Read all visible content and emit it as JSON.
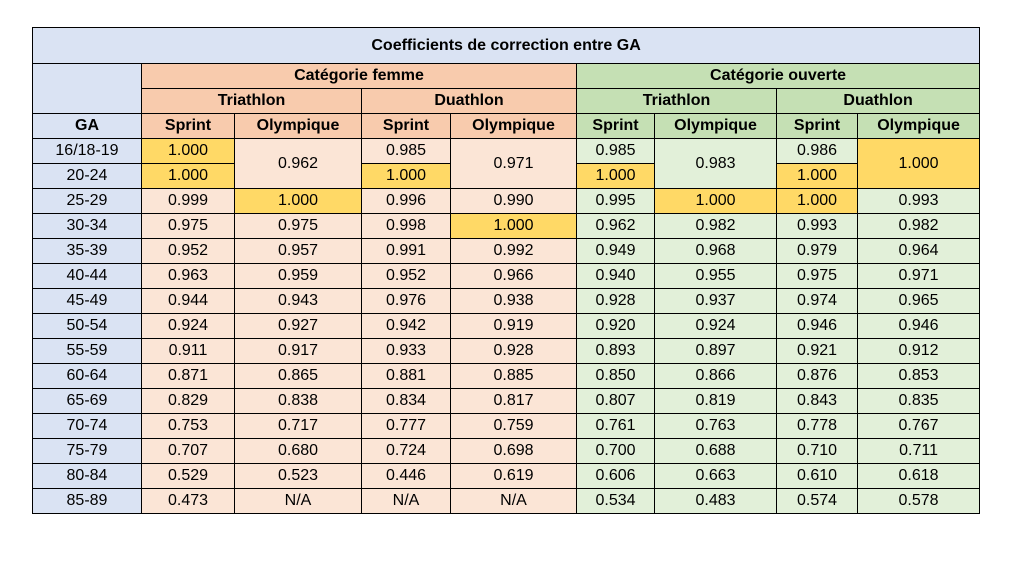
{
  "title": "Coefficients de correction entre GA",
  "header": {
    "category_femme": "Catégorie femme",
    "category_ouverte": "Catégorie ouverte",
    "triathlon": "Triathlon",
    "duathlon": "Duathlon",
    "ga": "GA",
    "sprint": "Sprint",
    "olympique": "Olympique"
  },
  "colors": {
    "header_blue": "#dae3f3",
    "femme_header": "#f8cbad",
    "femme_cell": "#fbe5d6",
    "ouverte_header": "#c5e0b4",
    "ouverte_cell": "#e2f0d9",
    "highlight": "#ffd966"
  },
  "rows": {
    "r1": {
      "ga": "16/18-19",
      "fts": "1.000",
      "fto": "0.962",
      "fds": "0.985",
      "fdo": "0.971",
      "ots": "0.985",
      "oto": "0.983",
      "ods": "0.986",
      "odo": "1.000"
    },
    "r2": {
      "ga": "20-24",
      "fts": "1.000",
      "fds": "1.000",
      "ots": "1.000",
      "ods": "1.000"
    },
    "r3": {
      "ga": "25-29",
      "fts": "0.999",
      "fto": "1.000",
      "fds": "0.996",
      "fdo": "0.990",
      "ots": "0.995",
      "oto": "1.000",
      "ods": "1.000",
      "odo": "0.993"
    },
    "r4": {
      "ga": "30-34",
      "fts": "0.975",
      "fto": "0.975",
      "fds": "0.998",
      "fdo": "1.000",
      "ots": "0.962",
      "oto": "0.982",
      "ods": "0.993",
      "odo": "0.982"
    },
    "r5": {
      "ga": "35-39",
      "fts": "0.952",
      "fto": "0.957",
      "fds": "0.991",
      "fdo": "0.992",
      "ots": "0.949",
      "oto": "0.968",
      "ods": "0.979",
      "odo": "0.964"
    },
    "r6": {
      "ga": "40-44",
      "fts": "0.963",
      "fto": "0.959",
      "fds": "0.952",
      "fdo": "0.966",
      "ots": "0.940",
      "oto": "0.955",
      "ods": "0.975",
      "odo": "0.971"
    },
    "r7": {
      "ga": "45-49",
      "fts": "0.944",
      "fto": "0.943",
      "fds": "0.976",
      "fdo": "0.938",
      "ots": "0.928",
      "oto": "0.937",
      "ods": "0.974",
      "odo": "0.965"
    },
    "r8": {
      "ga": "50-54",
      "fts": "0.924",
      "fto": "0.927",
      "fds": "0.942",
      "fdo": "0.919",
      "ots": "0.920",
      "oto": "0.924",
      "ods": "0.946",
      "odo": "0.946"
    },
    "r9": {
      "ga": "55-59",
      "fts": "0.911",
      "fto": "0.917",
      "fds": "0.933",
      "fdo": "0.928",
      "ots": "0.893",
      "oto": "0.897",
      "ods": "0.921",
      "odo": "0.912"
    },
    "r10": {
      "ga": "60-64",
      "fts": "0.871",
      "fto": "0.865",
      "fds": "0.881",
      "fdo": "0.885",
      "ots": "0.850",
      "oto": "0.866",
      "ods": "0.876",
      "odo": "0.853"
    },
    "r11": {
      "ga": "65-69",
      "fts": "0.829",
      "fto": "0.838",
      "fds": "0.834",
      "fdo": "0.817",
      "ots": "0.807",
      "oto": "0.819",
      "ods": "0.843",
      "odo": "0.835"
    },
    "r12": {
      "ga": "70-74",
      "fts": "0.753",
      "fto": "0.717",
      "fds": "0.777",
      "fdo": "0.759",
      "ots": "0.761",
      "oto": "0.763",
      "ods": "0.778",
      "odo": "0.767"
    },
    "r13": {
      "ga": "75-79",
      "fts": "0.707",
      "fto": "0.680",
      "fds": "0.724",
      "fdo": "0.698",
      "ots": "0.700",
      "oto": "0.688",
      "ods": "0.710",
      "odo": "0.711"
    },
    "r14": {
      "ga": "80-84",
      "fts": "0.529",
      "fto": "0.523",
      "fds": "0.446",
      "fdo": "0.619",
      "ots": "0.606",
      "oto": "0.663",
      "ods": "0.610",
      "odo": "0.618"
    },
    "r15": {
      "ga": "85-89",
      "fts": "0.473",
      "fto": "N/A",
      "fds": "N/A",
      "fdo": "N/A",
      "ots": "0.534",
      "oto": "0.483",
      "ods": "0.574",
      "odo": "0.578"
    }
  }
}
